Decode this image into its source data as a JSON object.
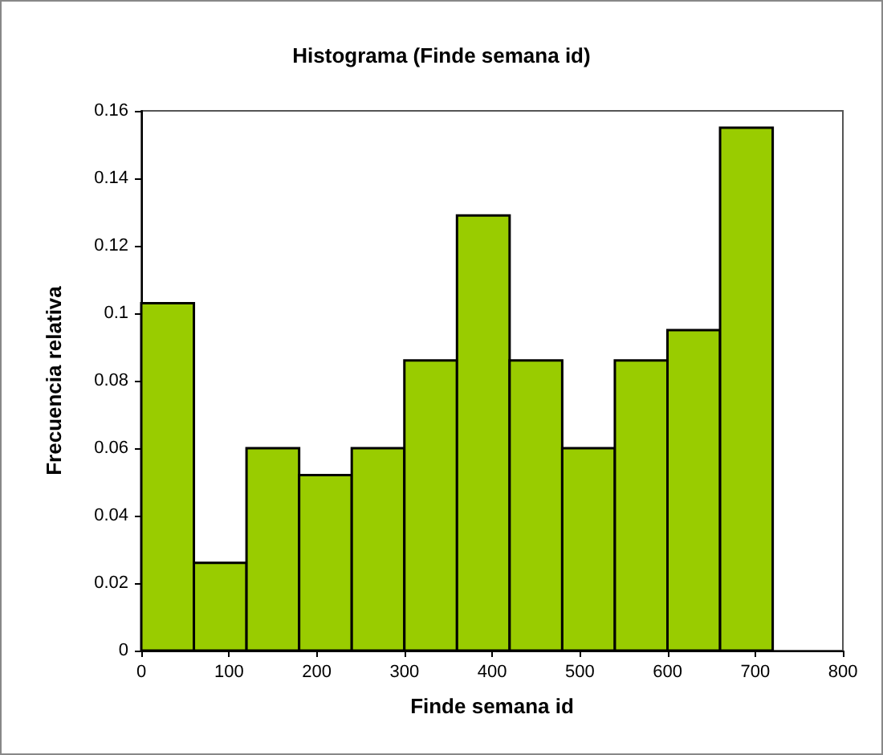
{
  "chart_data": {
    "type": "histogram",
    "title": "Histograma (Finde semana id)",
    "xlabel": "Finde semana id",
    "ylabel": "Frecuencia relativa",
    "bins": [
      0,
      60,
      120,
      180,
      240,
      300,
      360,
      420,
      480,
      540,
      600,
      660,
      720
    ],
    "values": [
      0.103,
      0.026,
      0.06,
      0.052,
      0.06,
      0.086,
      0.129,
      0.086,
      0.06,
      0.086,
      0.095,
      0.155
    ],
    "color": "#99cc00",
    "xlim": [
      0,
      800
    ],
    "xticks": [
      0,
      100,
      200,
      300,
      400,
      500,
      600,
      700,
      800
    ],
    "ylim": [
      0,
      0.16
    ],
    "yticks": [
      0,
      0.02,
      0.04,
      0.06,
      0.08,
      0.1,
      0.12,
      0.14,
      0.16
    ]
  }
}
